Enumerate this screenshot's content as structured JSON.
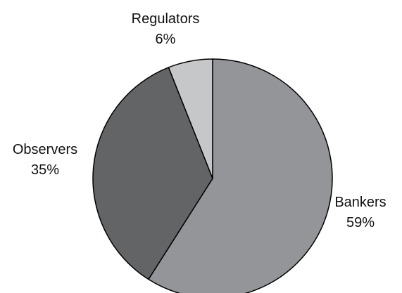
{
  "chart_data": {
    "type": "pie",
    "title": "",
    "slices": [
      {
        "label": "Bankers",
        "value": 59,
        "value_label": "59%",
        "color": "#939598"
      },
      {
        "label": "Observers",
        "value": 35,
        "value_label": "35%",
        "color": "#636466"
      },
      {
        "label": "Regulators",
        "value": 6,
        "value_label": "6%",
        "color": "#c6c7c9"
      }
    ],
    "start": "12 o'clock",
    "direction": "clockwise",
    "legend": "none"
  }
}
